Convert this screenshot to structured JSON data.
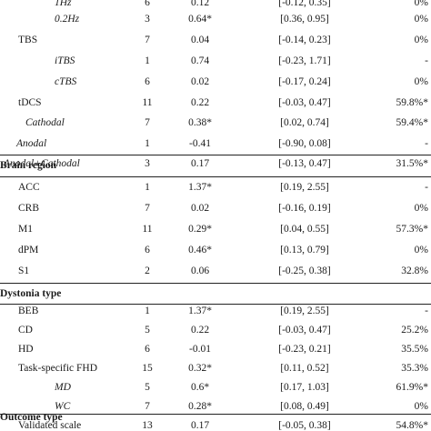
{
  "rows": [
    {
      "label": "1Hz",
      "n": "6",
      "est": "0.12",
      "ci": "[-0.12, 0.35]",
      "i2": "0%"
    },
    {
      "label": "0.2Hz",
      "n": "3",
      "est": "0.64*",
      "ci": "[0.36, 0.95]",
      "i2": "0%"
    },
    {
      "label": "TBS",
      "n": "7",
      "est": "0.04",
      "ci": "[-0.14, 0.23]",
      "i2": "0%"
    },
    {
      "label": "iTBS",
      "n": "1",
      "est": "0.74",
      "ci": "[-0.23, 1.71]",
      "i2": "-"
    },
    {
      "label": "cTBS",
      "n": "6",
      "est": "0.02",
      "ci": "[-0.17, 0.24]",
      "i2": "0%"
    },
    {
      "label": "tDCS",
      "n": "11",
      "est": "0.22",
      "ci": "[-0.03, 0.47]",
      "i2": "59.8%*"
    },
    {
      "label": "Cathodal",
      "n": "7",
      "est": "0.38*",
      "ci": "[0.02, 0.74]",
      "i2": "59.4%*"
    },
    {
      "label": "Anodal",
      "n": "1",
      "est": "-0.41",
      "ci": "[-0.90, 0.08]",
      "i2": "-"
    },
    {
      "label": "Anodal+Cathodal",
      "n": "3",
      "est": "0.17",
      "ci": "[-0.13, 0.47]",
      "i2": "31.5%*"
    }
  ],
  "brain_region": {
    "heading": "Brain region",
    "rows": [
      {
        "label": "ACC",
        "n": "1",
        "est": "1.37*",
        "ci": "[0.19, 2.55]",
        "i2": "-"
      },
      {
        "label": "CRB",
        "n": "7",
        "est": "0.02",
        "ci": "[-0.16, 0.19]",
        "i2": "0%"
      },
      {
        "label": "M1",
        "n": "11",
        "est": "0.29*",
        "ci": "[0.04, 0.55]",
        "i2": "57.3%*"
      },
      {
        "label": "dPM",
        "n": "6",
        "est": "0.46*",
        "ci": "[0.13, 0.79]",
        "i2": "0%"
      },
      {
        "label": "S1",
        "n": "2",
        "est": "0.06",
        "ci": "[-0.25, 0.38]",
        "i2": "32.8%"
      }
    ]
  },
  "dystonia_type": {
    "heading": "Dystonia type",
    "rows": [
      {
        "label": "BEB",
        "n": "1",
        "est": "1.37*",
        "ci": "[0.19, 2.55]",
        "i2": "-"
      },
      {
        "label": "CD",
        "n": "5",
        "est": "0.22",
        "ci": "[-0.03, 0.47]",
        "i2": "25.2%"
      },
      {
        "label": "HD",
        "n": "6",
        "est": "-0.01",
        "ci": "[-0.23, 0.21]",
        "i2": "35.5%"
      },
      {
        "label": "Task-specific FHD",
        "n": "15",
        "est": "0.32*",
        "ci": "[0.11, 0.52]",
        "i2": "35.3%"
      },
      {
        "label": "MD",
        "n": "5",
        "est": "0.6*",
        "ci": "[0.17, 1.03]",
        "i2": "61.9%*"
      },
      {
        "label": "WC",
        "n": "7",
        "est": "0.28*",
        "ci": "[0.08, 0.49]",
        "i2": "0%"
      }
    ]
  },
  "outcome_type": {
    "heading": "Outcome type",
    "rows": [
      {
        "label": "Validated scale",
        "n": "13",
        "est": "0.17",
        "ci": "[-0.05, 0.38]",
        "i2": "54.8%*"
      }
    ]
  }
}
